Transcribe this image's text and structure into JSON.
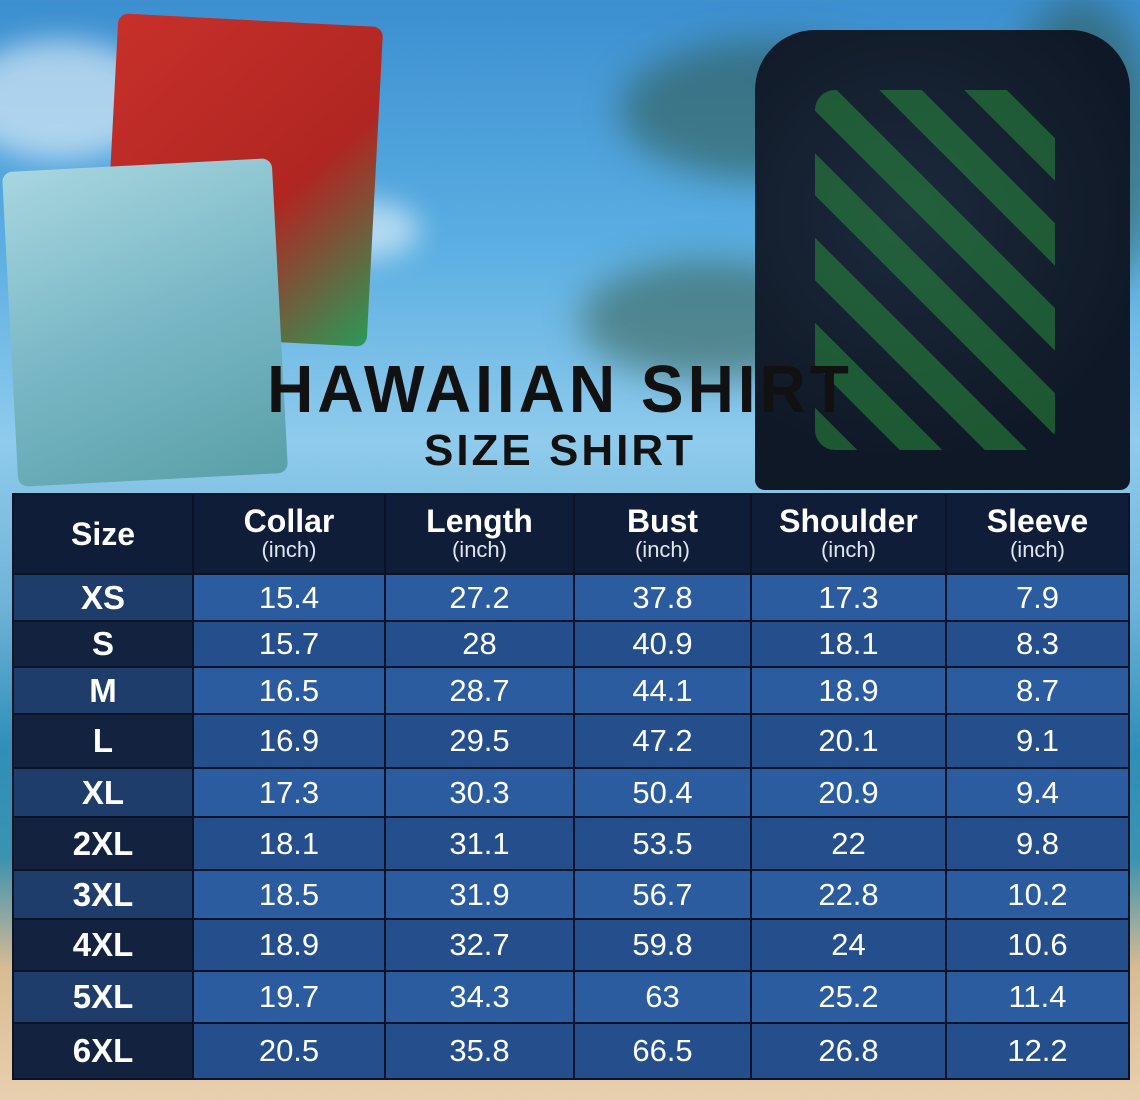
{
  "title": "HAWAIIAN SHIRT",
  "subtitle": "SIZE SHIRT",
  "table": {
    "headers": [
      {
        "label": "Size",
        "unit": ""
      },
      {
        "label": "Collar",
        "unit": "(inch)"
      },
      {
        "label": "Length",
        "unit": "(inch)"
      },
      {
        "label": "Bust",
        "unit": "(inch)"
      },
      {
        "label": "Shoulder",
        "unit": "(inch)"
      },
      {
        "label": "Sleeve",
        "unit": "(inch)"
      }
    ],
    "rows": [
      [
        "XS",
        "15.4",
        "27.2",
        "37.8",
        "17.3",
        "7.9"
      ],
      [
        "S",
        "15.7",
        "28",
        "40.9",
        "18.1",
        "8.3"
      ],
      [
        "M",
        "16.5",
        "28.7",
        "44.1",
        "18.9",
        "8.7"
      ],
      [
        "L",
        "16.9",
        "29.5",
        "47.2",
        "20.1",
        "9.1"
      ],
      [
        "XL",
        "17.3",
        "30.3",
        "50.4",
        "20.9",
        "9.4"
      ],
      [
        "2XL",
        "18.1",
        "31.1",
        "53.5",
        "22",
        "9.8"
      ],
      [
        "3XL",
        "18.5",
        "31.9",
        "56.7",
        "22.8",
        "10.2"
      ],
      [
        "4XL",
        "18.9",
        "32.7",
        "59.8",
        "24",
        "10.6"
      ],
      [
        "5XL",
        "19.7",
        "34.3",
        "63",
        "25.2",
        "11.4"
      ],
      [
        "6XL",
        "20.5",
        "35.8",
        "66.5",
        "26.8",
        "12.2"
      ]
    ]
  },
  "colors": {
    "header_bg": "#0f1d38",
    "cell_light": "#2b5c9f",
    "cell_dark": "#254f8c"
  }
}
